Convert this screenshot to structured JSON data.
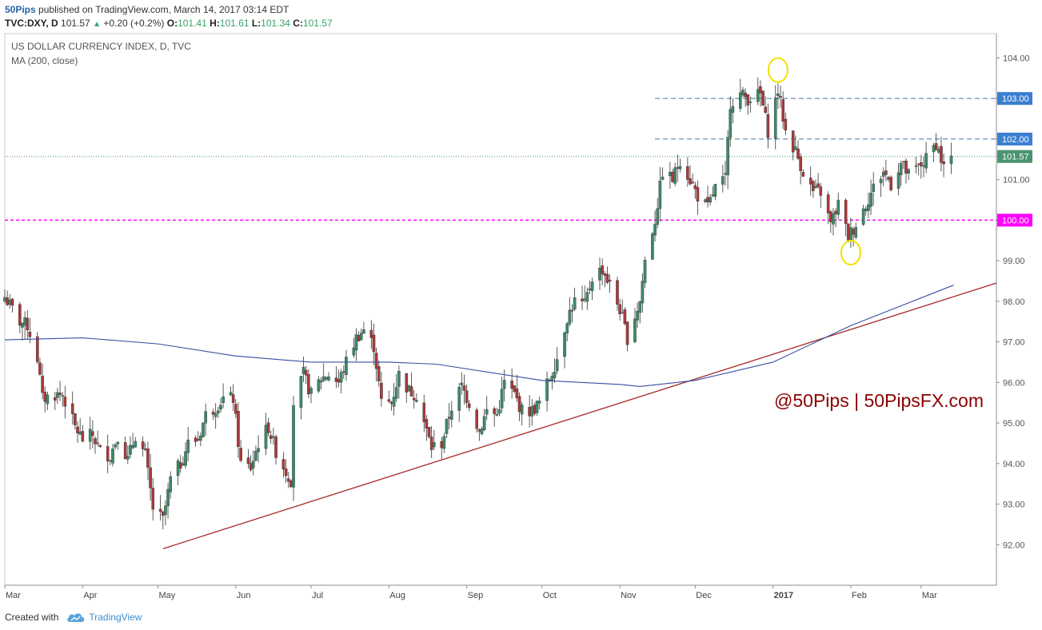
{
  "header": {
    "author": "50Pips",
    "published_text": "published on TradingView.com, March 14, 2017 03:14 EDT",
    "symbol_line": "TVC:DXY, D",
    "last": "101.57",
    "change": "+0.20 (+0.2%)",
    "o_label": "O:",
    "o_val": "101.41",
    "h_label": "H:",
    "h_val": "101.61",
    "l_label": "L:",
    "l_val": "101.34",
    "c_label": "C:",
    "c_val": "101.57"
  },
  "footer": {
    "created_with": "Created with",
    "brand": "TradingView"
  },
  "chart_data": {
    "type": "candlestick",
    "title": "US DOLLAR CURRENCY INDEX, D, TVC",
    "indicator": "MA (200, close)",
    "watermark": "@50Pips | 50PipsFX.com",
    "ylim": [
      91.0,
      104.6
    ],
    "y_ticks": [
      "92.00",
      "93.00",
      "94.00",
      "95.00",
      "96.00",
      "97.00",
      "98.00",
      "99.00",
      "100.00",
      "101.00",
      "102.00",
      "103.00",
      "104.00"
    ],
    "x_range": [
      "2016-03-01",
      "2017-03-31"
    ],
    "x_ticks": [
      {
        "date": "2016-03-01",
        "label": "Mar"
      },
      {
        "date": "2016-04-01",
        "label": "Apr"
      },
      {
        "date": "2016-05-01",
        "label": "May"
      },
      {
        "date": "2016-06-01",
        "label": "Jun"
      },
      {
        "date": "2016-07-01",
        "label": "Jul"
      },
      {
        "date": "2016-08-01",
        "label": "Aug"
      },
      {
        "date": "2016-09-01",
        "label": "Sep"
      },
      {
        "date": "2016-10-01",
        "label": "Oct"
      },
      {
        "date": "2016-11-01",
        "label": "Nov"
      },
      {
        "date": "2016-12-01",
        "label": "Dec"
      },
      {
        "date": "2017-01-01",
        "label": "2017"
      },
      {
        "date": "2017-02-01",
        "label": "Feb"
      },
      {
        "date": "2017-03-01",
        "label": "Mar"
      }
    ],
    "close_series": [
      [
        "2016-03-01",
        98.1
      ],
      [
        "2016-03-04",
        97.8
      ],
      [
        "2016-03-07",
        97.5
      ],
      [
        "2016-03-10",
        97.4
      ],
      [
        "2016-03-14",
        96.6
      ],
      [
        "2016-03-16",
        95.6
      ],
      [
        "2016-03-21",
        95.7
      ],
      [
        "2016-03-24",
        95.7
      ],
      [
        "2016-03-29",
        94.9
      ],
      [
        "2016-04-01",
        94.6
      ],
      [
        "2016-04-05",
        94.7
      ],
      [
        "2016-04-08",
        94.3
      ],
      [
        "2016-04-12",
        94.2
      ],
      [
        "2016-04-15",
        94.7
      ],
      [
        "2016-04-19",
        94.1
      ],
      [
        "2016-04-22",
        94.7
      ],
      [
        "2016-04-26",
        94.2
      ],
      [
        "2016-04-29",
        92.9
      ],
      [
        "2016-05-03",
        92.6
      ],
      [
        "2016-05-06",
        93.6
      ],
      [
        "2016-05-10",
        94.0
      ],
      [
        "2016-05-13",
        94.5
      ],
      [
        "2016-05-17",
        94.6
      ],
      [
        "2016-05-20",
        95.2
      ],
      [
        "2016-05-24",
        95.4
      ],
      [
        "2016-05-27",
        95.6
      ],
      [
        "2016-05-31",
        95.6
      ],
      [
        "2016-06-03",
        94.0
      ],
      [
        "2016-06-07",
        93.9
      ],
      [
        "2016-06-10",
        94.5
      ],
      [
        "2016-06-14",
        94.9
      ],
      [
        "2016-06-17",
        94.3
      ],
      [
        "2016-06-21",
        93.8
      ],
      [
        "2016-06-23",
        93.6
      ],
      [
        "2016-06-24",
        95.5
      ],
      [
        "2016-06-28",
        96.2
      ],
      [
        "2016-07-01",
        95.7
      ],
      [
        "2016-07-05",
        96.1
      ],
      [
        "2016-07-08",
        96.2
      ],
      [
        "2016-07-12",
        96.0
      ],
      [
        "2016-07-15",
        96.5
      ],
      [
        "2016-07-19",
        97.1
      ],
      [
        "2016-07-22",
        97.3
      ],
      [
        "2016-07-26",
        96.9
      ],
      [
        "2016-07-29",
        95.5
      ],
      [
        "2016-08-02",
        95.5
      ],
      [
        "2016-08-05",
        96.2
      ],
      [
        "2016-08-09",
        95.8
      ],
      [
        "2016-08-12",
        95.7
      ],
      [
        "2016-08-16",
        94.8
      ],
      [
        "2016-08-18",
        94.4
      ],
      [
        "2016-08-22",
        94.5
      ],
      [
        "2016-08-26",
        95.4
      ],
      [
        "2016-08-30",
        95.9
      ],
      [
        "2016-09-02",
        95.5
      ],
      [
        "2016-09-06",
        94.8
      ],
      [
        "2016-09-09",
        95.3
      ],
      [
        "2016-09-13",
        95.2
      ],
      [
        "2016-09-16",
        96.0
      ],
      [
        "2016-09-20",
        95.7
      ],
      [
        "2016-09-23",
        95.3
      ],
      [
        "2016-09-27",
        95.3
      ],
      [
        "2016-09-30",
        95.5
      ],
      [
        "2016-10-04",
        96.1
      ],
      [
        "2016-10-07",
        96.6
      ],
      [
        "2016-10-11",
        97.6
      ],
      [
        "2016-10-14",
        98.0
      ],
      [
        "2016-10-18",
        97.9
      ],
      [
        "2016-10-21",
        98.6
      ],
      [
        "2016-10-25",
        98.8
      ],
      [
        "2016-10-28",
        98.4
      ],
      [
        "2016-11-01",
        97.8
      ],
      [
        "2016-11-04",
        97.1
      ],
      [
        "2016-11-09",
        98.0
      ],
      [
        "2016-11-11",
        99.0
      ],
      [
        "2016-11-15",
        100.0
      ],
      [
        "2016-11-18",
        101.2
      ],
      [
        "2016-11-22",
        101.0
      ],
      [
        "2016-11-25",
        101.5
      ],
      [
        "2016-11-29",
        101.0
      ],
      [
        "2016-12-02",
        100.6
      ],
      [
        "2016-12-06",
        100.3
      ],
      [
        "2016-12-09",
        100.8
      ],
      [
        "2016-12-13",
        101.0
      ],
      [
        "2016-12-15",
        102.9
      ],
      [
        "2016-12-19",
        103.1
      ],
      [
        "2016-12-22",
        103.0
      ],
      [
        "2016-12-27",
        103.1
      ],
      [
        "2016-12-30",
        102.2
      ],
      [
        "2017-01-03",
        103.2
      ],
      [
        "2017-01-06",
        102.2
      ],
      [
        "2017-01-10",
        101.7
      ],
      [
        "2017-01-13",
        101.2
      ],
      [
        "2017-01-17",
        100.7
      ],
      [
        "2017-01-20",
        100.7
      ],
      [
        "2017-01-24",
        99.9
      ],
      [
        "2017-01-27",
        100.4
      ],
      [
        "2017-01-31",
        99.6
      ],
      [
        "2017-02-03",
        99.9
      ],
      [
        "2017-02-07",
        100.4
      ],
      [
        "2017-02-10",
        100.8
      ],
      [
        "2017-02-14",
        101.2
      ],
      [
        "2017-02-17",
        100.9
      ],
      [
        "2017-02-21",
        101.4
      ],
      [
        "2017-02-24",
        101.1
      ],
      [
        "2017-02-28",
        101.3
      ],
      [
        "2017-03-03",
        101.5
      ],
      [
        "2017-03-07",
        101.9
      ],
      [
        "2017-03-10",
        101.3
      ],
      [
        "2017-03-13",
        101.57
      ]
    ],
    "ma200_series": [
      [
        "2016-03-01",
        97.05
      ],
      [
        "2016-04-01",
        97.1
      ],
      [
        "2016-05-01",
        96.95
      ],
      [
        "2016-06-01",
        96.65
      ],
      [
        "2016-07-01",
        96.5
      ],
      [
        "2016-08-01",
        96.5
      ],
      [
        "2016-08-20",
        96.45
      ],
      [
        "2016-09-15",
        96.2
      ],
      [
        "2016-10-01",
        96.05
      ],
      [
        "2016-11-01",
        95.95
      ],
      [
        "2016-11-09",
        95.9
      ],
      [
        "2016-12-01",
        96.05
      ],
      [
        "2017-01-01",
        96.5
      ],
      [
        "2017-02-01",
        97.4
      ],
      [
        "2017-03-14",
        98.4
      ]
    ],
    "trendline": {
      "start": [
        "2016-05-03",
        91.9
      ],
      "end": [
        "2017-03-31",
        98.45
      ],
      "color": "#a52a2a"
    },
    "horizontal_levels": [
      {
        "value": 103.0,
        "label": "103.00",
        "style": "dashed",
        "color": "#3a6ea5"
      },
      {
        "value": 102.0,
        "label": "102.00",
        "style": "dashed",
        "color": "#3a6ea5"
      },
      {
        "value": 101.57,
        "label": "101.57",
        "style": "dotted",
        "color": "#4a9470",
        "full_width": true
      },
      {
        "value": 100.0,
        "label": "100.00",
        "style": "dashed",
        "color": "#ff00ff",
        "full_width": true
      }
    ],
    "highlight_circles": [
      {
        "date": "2017-01-03",
        "value": 103.7
      },
      {
        "date": "2017-02-01",
        "value": 99.2
      }
    ],
    "colors": {
      "up": "#3c8a68",
      "down": "#a83a3a",
      "ma": "#3b4fa3",
      "grid": "#d8dbe0"
    }
  }
}
